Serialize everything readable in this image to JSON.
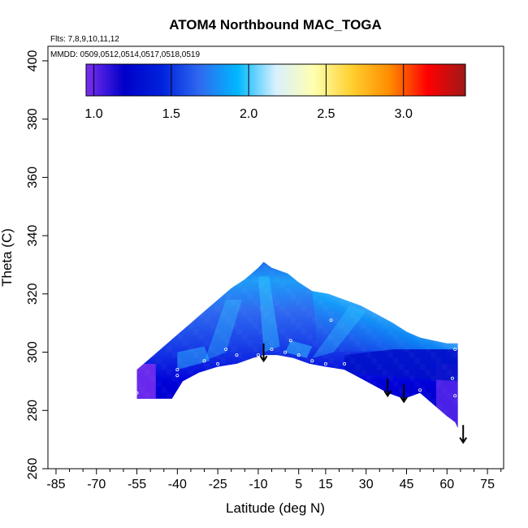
{
  "chart_data": {
    "type": "heatmap",
    "title": "ATOM4 Northbound MAC_TOGA",
    "flights_label": "Flts: 7,8,9,10,11,12",
    "dates_label": "MMDD: 0509,0512,0514,0517,0518,0519",
    "xlabel": "Latitude (deg N)",
    "ylabel": "Theta (C)",
    "xlim": [
      -88,
      81
    ],
    "ylim": [
      260,
      405
    ],
    "x_ticks": [
      -85,
      -70,
      -55,
      -40,
      -25,
      -10,
      5,
      15,
      30,
      45,
      60,
      75
    ],
    "y_ticks": [
      260,
      280,
      300,
      320,
      340,
      360,
      380,
      400
    ],
    "colorbar": {
      "min": 0.95,
      "max": 3.4,
      "ticks": [
        1.0,
        1.5,
        2.0,
        2.5,
        3.0
      ],
      "tick_labels": [
        "1.0",
        "1.5",
        "2.0",
        "2.5",
        "3.0"
      ],
      "colors": [
        "#7b2ff0",
        "#0000c8",
        "#0022dd",
        "#2f6af0",
        "#00b8ff",
        "#d8f0ff",
        "#ffffb0",
        "#ffd030",
        "#ff8c00",
        "#ff0000",
        "#a01818"
      ]
    },
    "field": {
      "lat_range": [
        -55,
        67
      ],
      "bottom": [
        [
          -55,
          284
        ],
        [
          -42,
          284
        ],
        [
          -38,
          290
        ],
        [
          -32,
          293
        ],
        [
          -25,
          295
        ],
        [
          -18,
          296
        ],
        [
          -12,
          298
        ],
        [
          -8,
          299
        ],
        [
          -3,
          299
        ],
        [
          3,
          298
        ],
        [
          9,
          296
        ],
        [
          15,
          295
        ],
        [
          22,
          294
        ],
        [
          30,
          290
        ],
        [
          38,
          286
        ],
        [
          44,
          284
        ],
        [
          50,
          286
        ],
        [
          55,
          282
        ],
        [
          60,
          278
        ],
        [
          63,
          276
        ],
        [
          64,
          274
        ],
        [
          64,
          291
        ]
      ],
      "top": [
        [
          64,
          300
        ],
        [
          64,
          303
        ],
        [
          60,
          303
        ],
        [
          55,
          304
        ],
        [
          50,
          305
        ],
        [
          45,
          307
        ],
        [
          40,
          310
        ],
        [
          34,
          313
        ],
        [
          28,
          316
        ],
        [
          22,
          318
        ],
        [
          16,
          320
        ],
        [
          10,
          321
        ],
        [
          5,
          324
        ],
        [
          1,
          327
        ],
        [
          -5,
          329
        ],
        [
          -8,
          331
        ],
        [
          -10,
          329
        ],
        [
          -15,
          325
        ],
        [
          -20,
          322
        ],
        [
          -25,
          318
        ],
        [
          -30,
          314
        ],
        [
          -35,
          310
        ],
        [
          -40,
          306
        ],
        [
          -45,
          302
        ],
        [
          -50,
          298
        ],
        [
          -55,
          294
        ]
      ]
    },
    "sample_points": [
      [
        -55,
        286
      ],
      [
        -40,
        292
      ],
      [
        -40,
        294
      ],
      [
        -30,
        297
      ],
      [
        -25,
        296
      ],
      [
        -22,
        301
      ],
      [
        -18,
        299
      ],
      [
        -10,
        299
      ],
      [
        -5,
        301
      ],
      [
        0,
        300
      ],
      [
        2,
        304
      ],
      [
        5,
        299
      ],
      [
        10,
        297
      ],
      [
        15,
        296
      ],
      [
        17,
        311
      ],
      [
        22,
        293
      ],
      [
        22,
        296
      ],
      [
        50,
        287
      ],
      [
        62,
        291
      ],
      [
        63,
        285
      ],
      [
        63,
        301
      ]
    ],
    "arrows": [
      {
        "lat": -8,
        "theta_top": 303,
        "theta_bottom": 297
      },
      {
        "lat": 38,
        "theta_top": 291,
        "theta_bottom": 285
      },
      {
        "lat": 44,
        "theta_top": 289,
        "theta_bottom": 283
      },
      {
        "lat": 66,
        "theta_top": 275,
        "theta_bottom": 269
      }
    ]
  }
}
